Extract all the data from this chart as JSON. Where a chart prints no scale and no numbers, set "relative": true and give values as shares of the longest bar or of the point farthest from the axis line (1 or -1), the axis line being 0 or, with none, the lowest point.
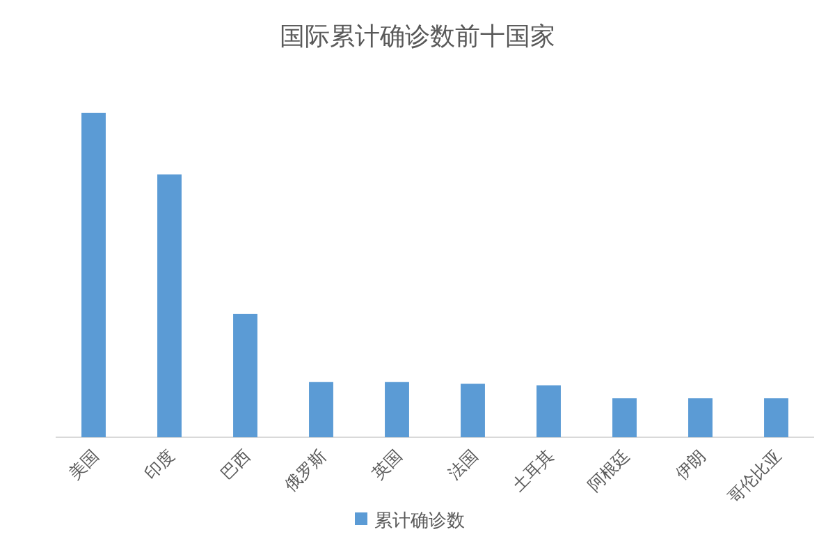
{
  "chart_data": {
    "type": "bar",
    "title": "国际累计确诊数前十国家",
    "relative": true,
    "categories": [
      "美国",
      "印度",
      "巴西",
      "俄罗斯",
      "英国",
      "法国",
      "土耳其",
      "阿根廷",
      "伊朗",
      "哥伦比亚"
    ],
    "series": [
      {
        "name": "累计确诊数",
        "color": "#5b9bd5",
        "values": [
          1,
          0.81,
          0.38,
          0.17,
          0.17,
          0.165,
          0.16,
          0.12,
          0.12,
          0.12
        ]
      }
    ],
    "legend": "bottom"
  }
}
